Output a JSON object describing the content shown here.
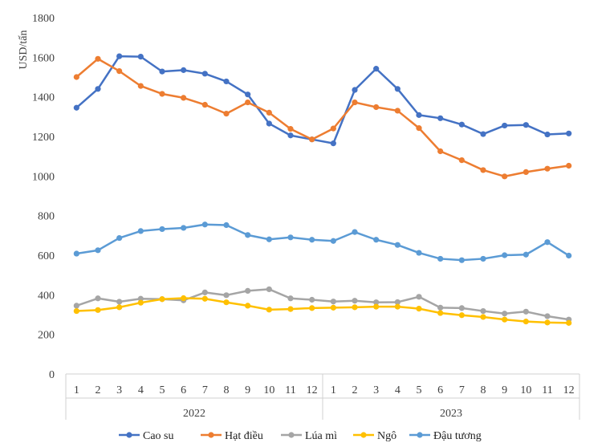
{
  "chart_data": {
    "type": "line",
    "title": "",
    "ylabel": "USD/tấn",
    "xlabel": "",
    "ylim": [
      0,
      1800
    ],
    "ytick_step": 200,
    "months": [
      "1",
      "2",
      "3",
      "4",
      "5",
      "6",
      "7",
      "8",
      "9",
      "10",
      "11",
      "12",
      "1",
      "2",
      "3",
      "4",
      "5",
      "6",
      "7",
      "8",
      "9",
      "10",
      "11",
      "12"
    ],
    "years": [
      {
        "label": "2022",
        "start": 0,
        "end": 11
      },
      {
        "label": "2023",
        "start": 12,
        "end": 23
      }
    ],
    "legend_position": "bottom",
    "series": [
      {
        "name": "Cao su",
        "color": "#4472C4",
        "values": [
          1345,
          1440,
          1605,
          1603,
          1528,
          1535,
          1517,
          1478,
          1412,
          1265,
          1205,
          1185,
          1165,
          1435,
          1542,
          1440,
          1308,
          1292,
          1260,
          1212,
          1255,
          1258,
          1210,
          1215
        ]
      },
      {
        "name": "Hạt điều",
        "color": "#ED7D31",
        "values": [
          1500,
          1592,
          1530,
          1455,
          1415,
          1395,
          1360,
          1315,
          1372,
          1320,
          1238,
          1185,
          1240,
          1372,
          1348,
          1330,
          1242,
          1125,
          1080,
          1030,
          998,
          1020,
          1037,
          1052
        ]
      },
      {
        "name": "Lúa mì",
        "color": "#A5A5A5",
        "values": [
          345,
          382,
          365,
          380,
          378,
          372,
          412,
          398,
          420,
          428,
          382,
          375,
          366,
          370,
          362,
          363,
          390,
          335,
          333,
          318,
          305,
          315,
          292,
          275
        ]
      },
      {
        "name": "Ngô",
        "color": "#FFC000",
        "values": [
          318,
          323,
          337,
          360,
          378,
          383,
          380,
          362,
          345,
          325,
          328,
          333,
          335,
          337,
          340,
          340,
          330,
          308,
          297,
          288,
          275,
          265,
          260,
          258
        ]
      },
      {
        "name": "Đậu tương",
        "color": "#5B9BD5",
        "values": [
          608,
          625,
          687,
          722,
          732,
          738,
          755,
          752,
          702,
          680,
          690,
          678,
          672,
          717,
          678,
          652,
          612,
          582,
          575,
          582,
          600,
          603,
          666,
          598
        ]
      }
    ]
  }
}
